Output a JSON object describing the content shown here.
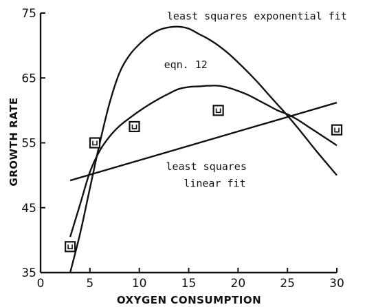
{
  "chart_data": {
    "type": "scatter",
    "title": "",
    "xlabel": "OXYGEN CONSUMPTION",
    "ylabel": "GROWTH RATE",
    "xlim": [
      0,
      30
    ],
    "ylim": [
      35,
      75
    ],
    "xticks": [
      "0",
      "5",
      "10",
      "15",
      "20",
      "25",
      "30"
    ],
    "yticks": [
      "35",
      "45",
      "55",
      "65",
      "75"
    ],
    "points": [
      {
        "x": 3,
        "y": 39
      },
      {
        "x": 5.5,
        "y": 55
      },
      {
        "x": 9.5,
        "y": 57.5
      },
      {
        "x": 18,
        "y": 60
      },
      {
        "x": 30,
        "y": 57
      }
    ],
    "series": [
      {
        "name": "least squares exponential fit",
        "x": [
          3,
          4,
          5,
          6,
          7,
          8,
          9,
          10,
          11,
          12,
          13,
          14,
          15,
          16,
          17,
          18,
          19,
          20,
          21,
          22,
          23,
          24,
          25,
          26,
          27,
          28,
          29,
          30
        ],
        "y": [
          35,
          41,
          48,
          55,
          61.2,
          65.8,
          68.5,
          70.2,
          71.5,
          72.4,
          72.8,
          72.9,
          72.6,
          71.8,
          71.0,
          70.0,
          68.8,
          67.4,
          65.9,
          64.3,
          62.6,
          60.9,
          59.2,
          57.4,
          55.5,
          53.6,
          51.8,
          50.0
        ]
      },
      {
        "name": "eqn. 12",
        "x": [
          3,
          4,
          5,
          6,
          7,
          8,
          9,
          10,
          11,
          12,
          13,
          14,
          15,
          16,
          17,
          18,
          19,
          20,
          21,
          22,
          23,
          24,
          25,
          26,
          27,
          28,
          29,
          30
        ],
        "y": [
          40.5,
          45.5,
          50.5,
          53.8,
          56.0,
          57.6,
          58.8,
          59.9,
          60.9,
          61.8,
          62.6,
          63.3,
          63.6,
          63.7,
          63.8,
          63.8,
          63.5,
          63.0,
          62.4,
          61.6,
          60.8,
          60.0,
          59.4,
          58.6,
          57.6,
          56.6,
          55.6,
          54.6
        ]
      },
      {
        "name": "least squares linear fit",
        "x": [
          3,
          30
        ],
        "y": [
          49.2,
          61.2
        ]
      }
    ],
    "annotations": [
      {
        "text": "least squares exponential fit",
        "x": 12.8,
        "y": 74.0
      },
      {
        "text": "eqn. 12",
        "x": 12.5,
        "y": 66.5
      },
      {
        "text": "least squares",
        "x": 12.7,
        "y": 50.8
      },
      {
        "text": "linear fit",
        "x": 14.5,
        "y": 48.2
      }
    ],
    "grid": false,
    "legend": "none"
  }
}
